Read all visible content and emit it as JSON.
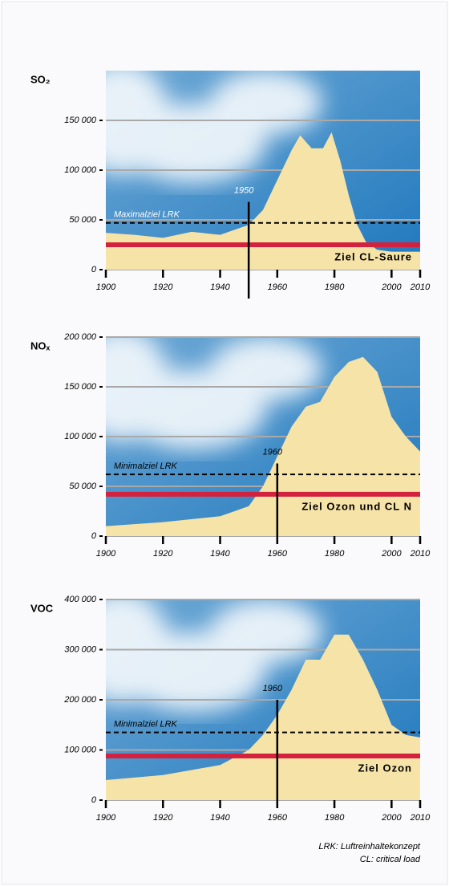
{
  "chart_data": [
    {
      "type": "area",
      "title": "SO₂",
      "x": [
        1900,
        1910,
        1920,
        1930,
        1940,
        1945,
        1950,
        1955,
        1960,
        1965,
        1968,
        1972,
        1976,
        1979,
        1982,
        1985,
        1988,
        1991,
        1995,
        2000,
        2010
      ],
      "values": [
        37000,
        35000,
        32000,
        38000,
        35000,
        40000,
        45000,
        60000,
        90000,
        120000,
        135000,
        122000,
        122000,
        138000,
        110000,
        75000,
        45000,
        28000,
        20000,
        18000,
        18000
      ],
      "color": "#f6e3a8",
      "xlim": [
        1900,
        2010
      ],
      "ylim": [
        0,
        200000
      ],
      "xticks": [
        1900,
        1920,
        1940,
        1960,
        1980,
        2000,
        2010
      ],
      "yticks": [
        0,
        {
          "value": 50000,
          "label": "50 000"
        },
        {
          "value": 100000,
          "label": "100 000"
        },
        {
          "value": 150000,
          "label": "150 000"
        }
      ],
      "grid": true,
      "reference_lines": [
        {
          "label": "Maximalziel LRK",
          "value": 47000,
          "color": "#000000",
          "dashed": true
        },
        {
          "label": "Ziel CL-Saure",
          "value": 25000,
          "color": "#d4213d",
          "dashed": false
        }
      ],
      "marker": {
        "x": 1950,
        "y": 68000
      }
    },
    {
      "type": "area",
      "title": "NOₓ",
      "x": [
        1900,
        1920,
        1940,
        1950,
        1955,
        1960,
        1965,
        1970,
        1975,
        1980,
        1985,
        1990,
        1995,
        2000,
        2005,
        2010
      ],
      "values": [
        10000,
        14000,
        20000,
        30000,
        50000,
        80000,
        110000,
        130000,
        135000,
        160000,
        175000,
        180000,
        165000,
        120000,
        100000,
        85000
      ],
      "color": "#f6e3a8",
      "xlim": [
        1900,
        2010
      ],
      "ylim": [
        0,
        200000
      ],
      "xticks": [
        1900,
        1920,
        1940,
        1960,
        1980,
        2000,
        2010
      ],
      "yticks": [
        0,
        {
          "value": 50000,
          "label": "50 000"
        },
        {
          "value": 100000,
          "label": "100 000"
        },
        {
          "value": 150000,
          "label": "150 000"
        },
        {
          "value": 200000,
          "label": "200 000"
        }
      ],
      "grid": true,
      "reference_lines": [
        {
          "label": "Minimalziel LRK",
          "value": 62000,
          "color": "#000000",
          "dashed": true
        },
        {
          "label": "Ziel Ozon und CL N",
          "value": 42000,
          "color": "#d4213d",
          "dashed": false
        }
      ],
      "marker": {
        "x": 1960,
        "y": 73000
      }
    },
    {
      "type": "area",
      "title": "VOC",
      "x": [
        1900,
        1920,
        1940,
        1950,
        1955,
        1960,
        1965,
        1970,
        1975,
        1980,
        1985,
        1990,
        1995,
        2000,
        2005,
        2010
      ],
      "values": [
        40000,
        50000,
        70000,
        100000,
        130000,
        170000,
        220000,
        280000,
        280000,
        330000,
        330000,
        280000,
        220000,
        150000,
        130000,
        125000
      ],
      "color": "#f6e3a8",
      "xlim": [
        1900,
        2010
      ],
      "ylim": [
        0,
        400000
      ],
      "xticks": [
        1900,
        1920,
        1940,
        1960,
        1980,
        2000,
        2010
      ],
      "yticks": [
        0,
        {
          "value": 100000,
          "label": "100 000"
        },
        {
          "value": 200000,
          "label": "200 000"
        },
        {
          "value": 300000,
          "label": "300 000"
        },
        {
          "value": 400000,
          "label": "400 000"
        }
      ],
      "grid": true,
      "reference_lines": [
        {
          "label": "Minimalziel LRK",
          "value": 135000,
          "color": "#000000",
          "dashed": true
        },
        {
          "label": "Ziel Ozon",
          "value": 88000,
          "color": "#d4213d",
          "dashed": false
        }
      ],
      "marker": {
        "x": 1960,
        "y": 200000
      }
    }
  ],
  "notes": [
    "LRK: Luftreinhaltekonzept",
    "CL: critical load"
  ]
}
